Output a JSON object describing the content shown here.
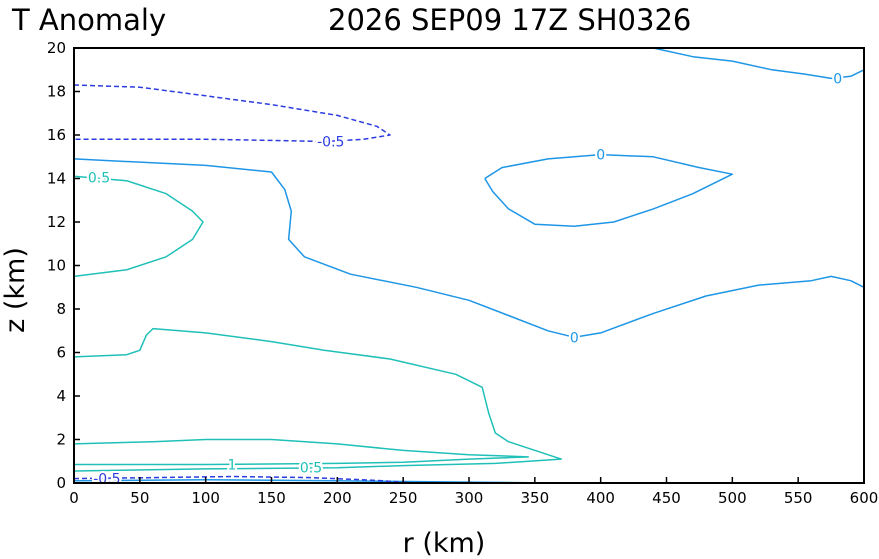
{
  "chart_data": {
    "type": "contour",
    "title_left": "T Anomaly",
    "title_right": "2026 SEP09 17Z   SH0326",
    "xlabel": "r (km)",
    "ylabel": "z (km)",
    "xlim": [
      0,
      600
    ],
    "ylim": [
      0,
      20
    ],
    "x_ticks": [
      "0",
      "50",
      "100",
      "150",
      "200",
      "250",
      "300",
      "350",
      "400",
      "450",
      "500",
      "550",
      "600"
    ],
    "y_ticks": [
      "0",
      "2",
      "4",
      "6",
      "8",
      "10",
      "12",
      "14",
      "16",
      "18",
      "20"
    ],
    "colors": {
      "positive": "#20c0b8",
      "zero": "#1e96e6",
      "negative": "#2c3ce0",
      "frame": "#000000"
    },
    "contours": [
      {
        "level": "0",
        "style": "solid",
        "color_key": "zero",
        "points": [
          [
            0,
            14.9
          ],
          [
            100,
            14.6
          ],
          [
            150,
            14.3
          ],
          [
            160,
            13.5
          ],
          [
            165,
            12.5
          ],
          [
            163,
            11.2
          ],
          [
            175,
            10.4
          ],
          [
            210,
            9.6
          ],
          [
            260,
            9
          ],
          [
            300,
            8.4
          ],
          [
            330,
            7.7
          ],
          [
            360,
            7
          ],
          [
            380,
            6.7
          ],
          [
            400,
            6.9
          ],
          [
            440,
            7.8
          ],
          [
            480,
            8.6
          ],
          [
            520,
            9.1
          ],
          [
            560,
            9.3
          ],
          [
            575,
            9.5
          ],
          [
            590,
            9.3
          ],
          [
            600,
            9
          ]
        ]
      },
      {
        "level": "0",
        "style": "solid",
        "color_key": "zero",
        "points": [
          [
            312,
            14
          ],
          [
            325,
            14.5
          ],
          [
            360,
            14.9
          ],
          [
            400,
            15.1
          ],
          [
            440,
            15
          ],
          [
            475,
            14.5
          ],
          [
            500,
            14.2
          ],
          [
            470,
            13.3
          ],
          [
            440,
            12.6
          ],
          [
            410,
            12
          ],
          [
            380,
            11.8
          ],
          [
            350,
            11.9
          ],
          [
            330,
            12.6
          ],
          [
            318,
            13.4
          ],
          [
            312,
            14
          ]
        ]
      },
      {
        "level": "0",
        "style": "solid",
        "color_key": "zero",
        "points": [
          [
            440,
            20
          ],
          [
            470,
            19.6
          ],
          [
            500,
            19.4
          ],
          [
            530,
            19
          ],
          [
            555,
            18.8
          ],
          [
            575,
            18.6
          ],
          [
            590,
            18.7
          ],
          [
            600,
            19
          ]
        ]
      },
      {
        "level": "0",
        "style": "solid",
        "color_key": "zero",
        "points": [
          [
            0,
            0.1
          ],
          [
            100,
            0.15
          ],
          [
            200,
            0.1
          ],
          [
            300,
            0.04
          ],
          [
            360,
            0
          ]
        ]
      },
      {
        "level": "0.5",
        "style": "solid",
        "color_key": "positive",
        "points": [
          [
            0,
            14.1
          ],
          [
            40,
            13.9
          ],
          [
            70,
            13.3
          ],
          [
            90,
            12.5
          ],
          [
            98,
            12
          ],
          [
            90,
            11.2
          ],
          [
            70,
            10.4
          ],
          [
            40,
            9.8
          ],
          [
            0,
            9.5
          ]
        ]
      },
      {
        "level": "0.5",
        "style": "solid",
        "color_key": "positive",
        "points": [
          [
            0,
            5.8
          ],
          [
            40,
            5.9
          ],
          [
            50,
            6.1
          ],
          [
            55,
            6.8
          ],
          [
            60,
            7.1
          ],
          [
            100,
            6.9
          ],
          [
            150,
            6.5
          ],
          [
            190,
            6.1
          ],
          [
            240,
            5.7
          ],
          [
            290,
            5
          ],
          [
            310,
            4.4
          ],
          [
            315,
            3.2
          ],
          [
            320,
            2.3
          ],
          [
            330,
            1.9
          ],
          [
            370,
            1.1
          ],
          [
            320,
            0.9
          ],
          [
            250,
            0.8
          ],
          [
            200,
            0.7
          ],
          [
            100,
            0.65
          ],
          [
            0,
            0.55
          ]
        ]
      },
      {
        "level": "1",
        "style": "solid",
        "color_key": "positive",
        "points": [
          [
            0,
            1.8
          ],
          [
            60,
            1.9
          ],
          [
            100,
            2
          ],
          [
            150,
            2
          ],
          [
            200,
            1.8
          ],
          [
            250,
            1.5
          ],
          [
            300,
            1.3
          ],
          [
            345,
            1.2
          ],
          [
            300,
            1.1
          ],
          [
            250,
            0.95
          ],
          [
            200,
            0.9
          ],
          [
            100,
            0.85
          ],
          [
            0,
            0.85
          ]
        ]
      },
      {
        "level": "-0.5",
        "style": "dashed",
        "color_key": "negative",
        "points": [
          [
            0,
            18.3
          ],
          [
            50,
            18.2
          ],
          [
            100,
            17.8
          ],
          [
            150,
            17.4
          ],
          [
            200,
            16.9
          ],
          [
            230,
            16.4
          ],
          [
            240,
            16
          ],
          [
            220,
            15.8
          ],
          [
            190,
            15.7
          ],
          [
            150,
            15.75
          ],
          [
            100,
            15.8
          ],
          [
            0,
            15.8
          ]
        ]
      },
      {
        "level": "-0.5",
        "style": "dashed",
        "color_key": "negative",
        "points": [
          [
            0,
            0.2
          ],
          [
            60,
            0.25
          ],
          [
            120,
            0.3
          ],
          [
            180,
            0.25
          ],
          [
            230,
            0.12
          ],
          [
            260,
            0
          ]
        ]
      }
    ],
    "contour_labels": [
      {
        "text": "-0.5",
        "x": 195,
        "y": 15.7,
        "color_key": "negative"
      },
      {
        "text": "0.5",
        "x": 19,
        "y": 14.05,
        "color_key": "positive"
      },
      {
        "text": "0",
        "x": 400,
        "y": 15.1,
        "color_key": "zero"
      },
      {
        "text": "0",
        "x": 380,
        "y": 6.7,
        "color_key": "zero"
      },
      {
        "text": "0",
        "x": 580,
        "y": 18.6,
        "color_key": "zero"
      },
      {
        "text": "1",
        "x": 120,
        "y": 0.85,
        "color_key": "positive"
      },
      {
        "text": "0.5",
        "x": 180,
        "y": 0.72,
        "color_key": "positive"
      },
      {
        "text": "-0.5",
        "x": 25,
        "y": 0.2,
        "color_key": "negative"
      }
    ]
  }
}
